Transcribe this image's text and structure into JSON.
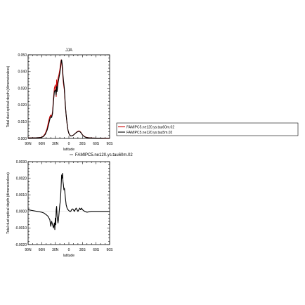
{
  "chart_data": [
    {
      "type": "line",
      "title": "JJA",
      "xlabel": "latitude",
      "ylabel": "Total dust optical depth (dimensionless)",
      "xlim": [
        90,
        -90
      ],
      "ylim": [
        0,
        0.05
      ],
      "x_ticks": [
        "90N",
        "60N",
        "30N",
        "0",
        "30S",
        "60S",
        "90S"
      ],
      "y_ticks": [
        "0.000",
        "0.010",
        "0.020",
        "0.030",
        "0.040",
        "0.050"
      ],
      "legend": {
        "placement": "right",
        "entries": [
          "FAMIPC5.ne120.ys.tau60m.02",
          "FAMIPC5.ne120.ys.tau5m.02"
        ]
      },
      "series": [
        {
          "name": "FAMIPC5.ne120.ys.tau60m.02",
          "color": "#cc0000",
          "x": [
            90,
            70,
            60,
            56,
            52,
            48,
            45,
            42,
            40,
            38,
            36,
            34,
            32,
            30,
            28,
            27,
            26,
            24,
            22,
            20,
            18,
            17,
            16,
            15,
            14,
            13,
            12,
            10,
            8,
            6,
            4,
            2,
            0,
            -2,
            -4,
            -6,
            -10,
            -14,
            -18,
            -22,
            -24,
            -26,
            -28,
            -30,
            -34,
            -38,
            -44,
            -50,
            -60,
            -70,
            -80,
            -90
          ],
          "y": [
            0.0003,
            0.0004,
            0.0007,
            0.0015,
            0.003,
            0.006,
            0.01,
            0.013,
            0.014,
            0.013,
            0.016,
            0.024,
            0.03,
            0.032,
            0.025,
            0.035,
            0.03,
            0.036,
            0.038,
            0.041,
            0.045,
            0.047,
            0.046,
            0.043,
            0.04,
            0.036,
            0.033,
            0.029,
            0.02,
            0.014,
            0.009,
            0.005,
            0.003,
            0.002,
            0.0015,
            0.0015,
            0.002,
            0.003,
            0.004,
            0.0045,
            0.0043,
            0.0038,
            0.003,
            0.0022,
            0.0012,
            0.0007,
            0.0004,
            0.0003,
            0.0002,
            0.0002,
            0.0001,
            0.0001
          ]
        },
        {
          "name": "FAMIPC5.ne120.ys.tau5m.02",
          "color": "#000000",
          "x": [
            90,
            70,
            60,
            56,
            52,
            48,
            45,
            42,
            40,
            38,
            36,
            34,
            32,
            30,
            28,
            27,
            26,
            24,
            22,
            20,
            18,
            17,
            16,
            15,
            14,
            13,
            12,
            10,
            8,
            6,
            4,
            2,
            0,
            -2,
            -4,
            -6,
            -10,
            -14,
            -18,
            -22,
            -24,
            -26,
            -28,
            -30,
            -34,
            -38,
            -44,
            -50,
            -60,
            -70,
            -80,
            -90
          ],
          "y": [
            0.0003,
            0.0004,
            0.0006,
            0.0012,
            0.0025,
            0.005,
            0.008,
            0.0115,
            0.013,
            0.0125,
            0.015,
            0.022,
            0.028,
            0.029,
            0.026,
            0.031,
            0.028,
            0.033,
            0.036,
            0.039,
            0.043,
            0.046,
            0.047,
            0.045,
            0.042,
            0.038,
            0.035,
            0.03,
            0.021,
            0.014,
            0.009,
            0.005,
            0.003,
            0.002,
            0.0015,
            0.0015,
            0.002,
            0.003,
            0.0038,
            0.0043,
            0.0041,
            0.0036,
            0.0029,
            0.0021,
            0.0011,
            0.0006,
            0.0004,
            0.0003,
            0.0002,
            0.0002,
            0.0001,
            0.0001
          ]
        }
      ]
    },
    {
      "type": "line",
      "title": "",
      "subtitle": "FAMIPC5.ne120.ys.tau60m.02",
      "xlabel": "latitude",
      "ylabel": "Total dust optical depth (dimensionless)",
      "xlim": [
        90,
        -90
      ],
      "ylim": [
        -0.002,
        0.003
      ],
      "x_ticks": [
        "90N",
        "60N",
        "30N",
        "0",
        "30S",
        "60S",
        "90S"
      ],
      "y_ticks": [
        "-0.0020",
        "-0.0010",
        "0.0000",
        "0.0010",
        "0.0020",
        "0.0030"
      ],
      "series": [
        {
          "color": "#000000",
          "x": [
            90,
            80,
            70,
            60,
            55,
            50,
            46,
            42,
            40,
            38,
            36,
            34,
            32,
            31,
            30,
            29,
            28,
            27,
            26,
            25,
            24,
            23,
            22,
            21,
            20,
            19,
            18,
            17,
            16,
            15,
            14,
            13,
            12,
            11,
            10,
            9,
            8,
            6,
            4,
            2,
            0,
            -2,
            -4,
            -6,
            -8,
            -10,
            -12,
            -14,
            -16,
            -18,
            -20,
            -22,
            -24,
            -26,
            -28,
            -30,
            -35,
            -40,
            -50,
            -60,
            -70,
            -90
          ],
          "y": [
            0.0001,
            5e-05,
            0.0,
            -5e-05,
            -0.0001,
            -0.0002,
            -0.0003,
            -0.0005,
            -0.0009,
            -0.0006,
            -0.0008,
            -0.001,
            -0.0007,
            -0.0011,
            -0.0004,
            -0.0008,
            0.0001,
            0.0003,
            -0.0003,
            -0.0005,
            -0.0007,
            -0.0005,
            -0.0002,
            0.0001,
            0.0004,
            0.0006,
            0.001,
            0.0016,
            0.0022,
            0.002,
            0.0023,
            0.0018,
            0.0016,
            0.0013,
            0.0014,
            0.0012,
            0.0009,
            0.0004,
            0.0002,
            0.0001,
            5e-05,
            0.0,
            0.0,
            0.0001,
            0.00015,
            0.0001,
            0.0,
            0.0001,
            0.0002,
            0.0001,
            0.0,
            0.0001,
            0.0002,
            0.0001,
            0.0002,
            0.0001,
            0.0,
            -5e-05,
            0.0,
            0.0,
            0.0,
            0.0
          ]
        }
      ]
    }
  ]
}
